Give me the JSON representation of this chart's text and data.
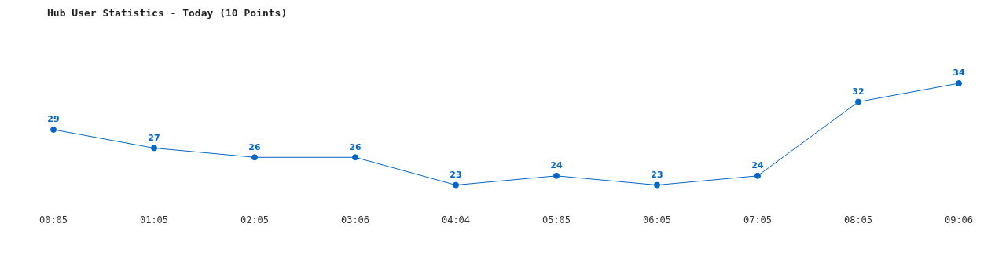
{
  "chart_data": {
    "type": "line",
    "title": "Hub User Statistics - Today (10 Points)",
    "categories": [
      "00:05",
      "01:05",
      "02:05",
      "03:06",
      "04:04",
      "05:05",
      "06:05",
      "07:05",
      "08:05",
      "09:06"
    ],
    "series": [
      {
        "color": "#0066cc",
        "values": [
          29,
          27,
          26,
          26,
          23,
          24,
          23,
          24,
          32,
          34
        ]
      }
    ],
    "tick_labels": "x",
    "grid": false,
    "legend": false,
    "data_labels": true,
    "marker": "circle",
    "line_style": "solid"
  }
}
